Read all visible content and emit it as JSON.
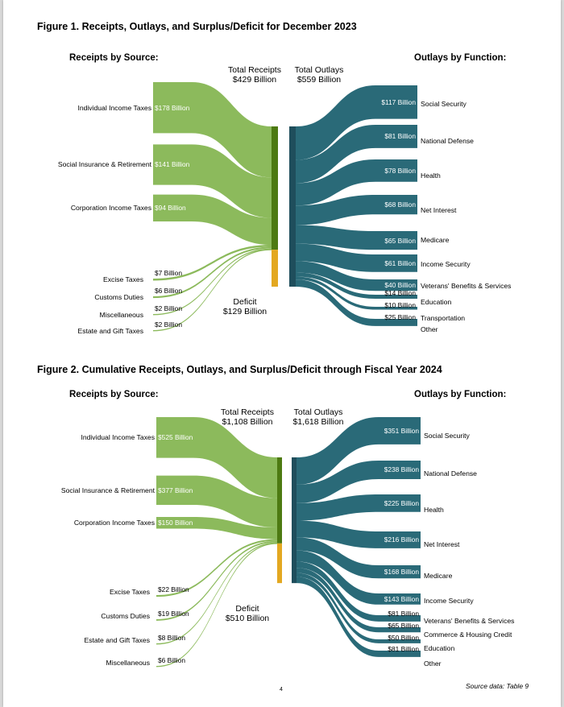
{
  "colors": {
    "receipts": "#8cba5c",
    "receipts_bar": "#4d7a12",
    "outlays": "#2a6a78",
    "outlays_bar": "#1f4e5c",
    "deficit": "#e3a821"
  },
  "chart_data": [
    {
      "type": "sankey",
      "title": "Figure 1. Receipts, Outlays, and Surplus/Deficit for December 2023",
      "receipts_heading": "Receipts by Source:",
      "outlays_heading": "Outlays by Function:",
      "total_receipts_label": "Total Receipts",
      "total_receipts_value": "$429 Billion",
      "total_outlays_label": "Total Outlays",
      "total_outlays_value": "$559 Billion",
      "deficit_label": "Deficit",
      "deficit_value": "$129 Billion",
      "receipts": [
        {
          "name": "Individual Income Taxes",
          "value": 178,
          "text": "$178 Billion"
        },
        {
          "name": "Social Insurance & Retirement",
          "value": 141,
          "text": "$141 Billion"
        },
        {
          "name": "Corporation Income Taxes",
          "value": 94,
          "text": "$94 Billion"
        },
        {
          "name": "Excise Taxes",
          "value": 7,
          "text": "$7 Billion"
        },
        {
          "name": "Customs Duties",
          "value": 6,
          "text": "$6 Billion"
        },
        {
          "name": "Miscellaneous",
          "value": 2,
          "text": "$2 Billion"
        },
        {
          "name": "Estate and Gift Taxes",
          "value": 2,
          "text": "$2 Billion"
        }
      ],
      "outlays": [
        {
          "name": "Social Security",
          "value": 117,
          "text": "$117 Billion"
        },
        {
          "name": "National Defense",
          "value": 81,
          "text": "$81 Billion"
        },
        {
          "name": "Health",
          "value": 78,
          "text": "$78 Billion"
        },
        {
          "name": "Net Interest",
          "value": 68,
          "text": "$68 Billion"
        },
        {
          "name": "Medicare",
          "value": 65,
          "text": "$65 Billion"
        },
        {
          "name": "Income Security",
          "value": 61,
          "text": "$61 Billion"
        },
        {
          "name": "Veterans' Benefits & Services",
          "value": 40,
          "text": "$40 Billion"
        },
        {
          "name": "Education",
          "value": 14,
          "text": "$14 Billion"
        },
        {
          "name": "Transportation",
          "value": 10,
          "text": "$10 Billion"
        },
        {
          "name": "Other",
          "value": 25,
          "text": "$25 Billion"
        }
      ]
    },
    {
      "type": "sankey",
      "title": "Figure 2. Cumulative Receipts, Outlays, and Surplus/Deficit through Fiscal Year 2024",
      "receipts_heading": "Receipts by Source:",
      "outlays_heading": "Outlays by Function:",
      "total_receipts_label": "Total Receipts",
      "total_receipts_value": "$1,108 Billion",
      "total_outlays_label": "Total Outlays",
      "total_outlays_value": "$1,618 Billion",
      "deficit_label": "Deficit",
      "deficit_value": "$510 Billion",
      "receipts": [
        {
          "name": "Individual Income Taxes",
          "value": 525,
          "text": "$525 Billion"
        },
        {
          "name": "Social Insurance & Retirement",
          "value": 377,
          "text": "$377 Billion"
        },
        {
          "name": "Corporation Income Taxes",
          "value": 150,
          "text": "$150 Billion"
        },
        {
          "name": "Excise Taxes",
          "value": 22,
          "text": "$22 Billion"
        },
        {
          "name": "Customs Duties",
          "value": 19,
          "text": "$19 Billion"
        },
        {
          "name": "Estate and Gift Taxes",
          "value": 8,
          "text": "$8 Billion"
        },
        {
          "name": "Miscellaneous",
          "value": 6,
          "text": "$6 Billion"
        }
      ],
      "outlays": [
        {
          "name": "Social Security",
          "value": 351,
          "text": "$351 Billion"
        },
        {
          "name": "National Defense",
          "value": 238,
          "text": "$238 Billion"
        },
        {
          "name": "Health",
          "value": 225,
          "text": "$225 Billion"
        },
        {
          "name": "Net Interest",
          "value": 216,
          "text": "$216 Billion"
        },
        {
          "name": "Medicare",
          "value": 168,
          "text": "$168 Billion"
        },
        {
          "name": "Income Security",
          "value": 143,
          "text": "$143 Billion"
        },
        {
          "name": "Veterans' Benefits & Services",
          "value": 81,
          "text": "$81 Billion"
        },
        {
          "name": "Commerce & Housing Credit",
          "value": 65,
          "text": "$65 Billion"
        },
        {
          "name": "Education",
          "value": 50,
          "text": "$50 Billion"
        },
        {
          "name": "Other",
          "value": 81,
          "text": "$81 Billion"
        }
      ]
    }
  ],
  "footer": {
    "page_number": "4",
    "source": "Source data: Table 9"
  }
}
